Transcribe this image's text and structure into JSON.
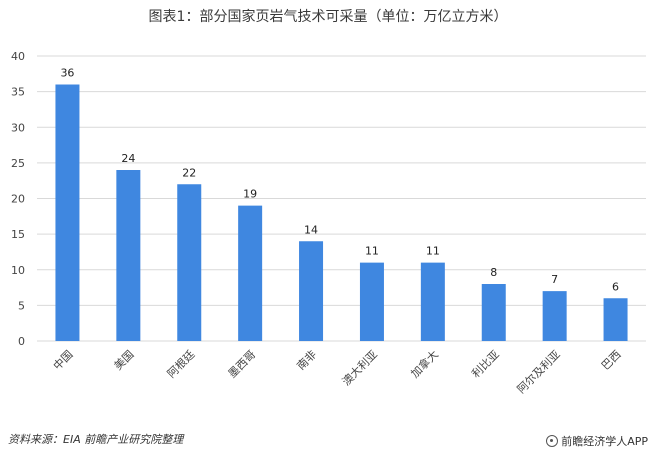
{
  "chart_data": {
    "type": "bar",
    "title": "图表1：部分国家页岩气技术可采量（单位：万亿立方米）",
    "categories": [
      "中国",
      "美国",
      "阿根廷",
      "墨西哥",
      "南非",
      "澳大利亚",
      "加拿大",
      "利比亚",
      "阿尔及利亚",
      "巴西"
    ],
    "values": [
      36,
      24,
      22,
      19,
      14,
      11,
      11,
      8,
      7,
      6
    ],
    "ylim": [
      0,
      40
    ],
    "yticks": [
      0,
      5,
      10,
      15,
      20,
      25,
      30,
      35,
      40
    ],
    "xlabel": "",
    "ylabel": "",
    "grid": true,
    "bar_color": "#3f87e0",
    "grid_color": "#d9d9d9"
  },
  "footer": {
    "source": "资料来源：EIA 前瞻产业研究院整理",
    "brand": "前瞻经济学人APP",
    "brand_icon": "qianzhan-logo-icon"
  }
}
